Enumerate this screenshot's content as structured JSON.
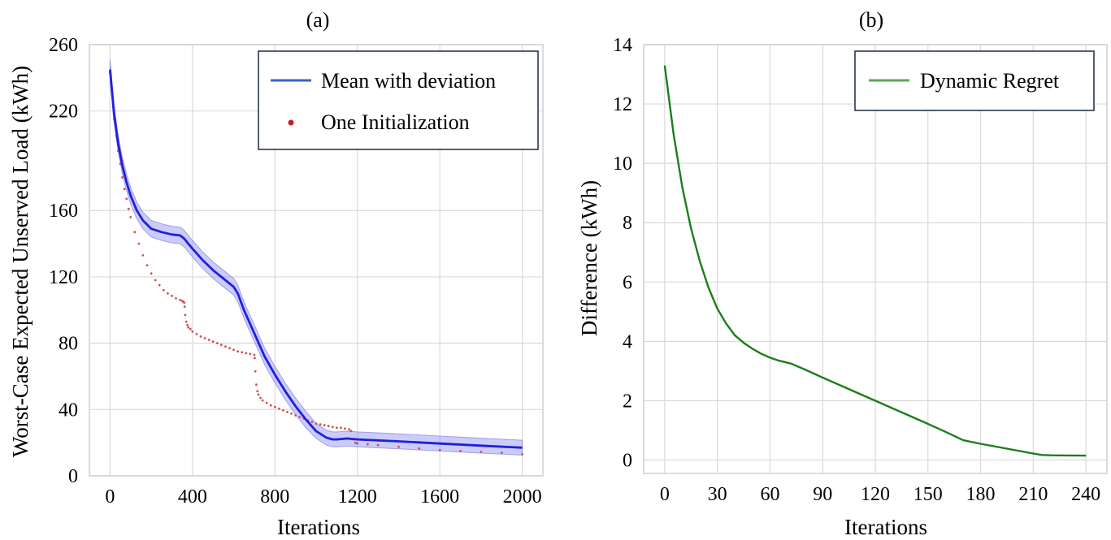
{
  "colors": {
    "mean_line": "#1f1fe0",
    "band_fill": "#8f8ff0",
    "band_edge": "#7070ea",
    "dots": "#d05050",
    "regret": "#1a7f1a",
    "legend_regret": "#5aa85a",
    "legend_mean": "#3a5fcd",
    "legend_dot": "#c81e1e",
    "legend_border": "#1a2a44",
    "grid": "#d9d9d9",
    "frame": "#cfcfcf"
  },
  "chart_data": [
    {
      "type": "line",
      "panel_label": "(a)",
      "xlabel": "Iterations",
      "ylabel": "Worst-Case Expected Unserved Load (kWh)",
      "xlim": [
        -100,
        2100
      ],
      "ylim": [
        0,
        260
      ],
      "xticks": [
        0,
        400,
        800,
        1200,
        1600,
        2000
      ],
      "xtick_labels": [
        "0",
        "400",
        "800",
        "1200",
        "1600",
        "2000"
      ],
      "yticks": [
        0,
        40,
        80,
        120,
        160,
        220,
        260
      ],
      "ytick_labels": [
        "0",
        "40",
        "80",
        "120",
        "160",
        "220",
        "260"
      ],
      "grid": true,
      "legend": {
        "position": "top-right",
        "entries": [
          "Mean with deviation",
          "One Initialization"
        ]
      },
      "series": [
        {
          "name": "Mean with deviation",
          "kind": "line_with_band",
          "x": [
            0,
            20,
            40,
            60,
            80,
            100,
            130,
            160,
            200,
            250,
            300,
            340,
            360,
            380,
            400,
            450,
            500,
            550,
            600,
            620,
            650,
            700,
            750,
            800,
            850,
            900,
            950,
            1000,
            1050,
            1080,
            1100,
            1150,
            1200,
            1400,
            1600,
            1800,
            2000
          ],
          "y": [
            245,
            218,
            200,
            187,
            177,
            169,
            160,
            154,
            149,
            147,
            145.5,
            145,
            143,
            140,
            137,
            130,
            124,
            119,
            114,
            110,
            100,
            86,
            72,
            61,
            51,
            42,
            34,
            27,
            23,
            22,
            22,
            22.5,
            22,
            20.8,
            19.5,
            18.2,
            17
          ],
          "band_halfwidth": [
            6,
            5,
            5,
            5,
            5,
            5,
            5,
            5,
            5,
            5,
            5,
            5,
            5,
            5,
            5,
            5,
            5,
            5,
            5,
            5,
            5,
            5,
            5,
            5,
            5,
            5,
            5,
            4.5,
            4.5,
            4.5,
            4.5,
            4.5,
            4.5,
            4.5,
            4.5,
            4.5,
            4.5
          ]
        },
        {
          "name": "One Initialization",
          "kind": "scatter",
          "x": [
            0,
            10,
            20,
            30,
            40,
            50,
            60,
            70,
            80,
            90,
            100,
            120,
            140,
            160,
            180,
            200,
            220,
            240,
            260,
            280,
            300,
            320,
            340,
            350,
            355,
            360,
            362,
            365,
            370,
            375,
            380,
            390,
            400,
            420,
            440,
            460,
            480,
            500,
            520,
            540,
            560,
            580,
            600,
            620,
            640,
            660,
            680,
            700,
            702,
            705,
            710,
            715,
            720,
            730,
            740,
            760,
            780,
            800,
            820,
            840,
            860,
            880,
            900,
            920,
            940,
            960,
            980,
            1000,
            1020,
            1040,
            1060,
            1080,
            1100,
            1120,
            1140,
            1160,
            1170,
            1180,
            1190,
            1200,
            1250,
            1300,
            1400,
            1500,
            1600,
            1700,
            1800,
            1900,
            2000
          ],
          "y": [
            243,
            230,
            215,
            205,
            196,
            188,
            180,
            173,
            167,
            161,
            156,
            147,
            140,
            133,
            127,
            122,
            118,
            115,
            112,
            110,
            108.5,
            107,
            106,
            105.5,
            105,
            104.5,
            102,
            97,
            93,
            91,
            89.5,
            88.5,
            87,
            85.5,
            84,
            83,
            82,
            81,
            80,
            79,
            78,
            77,
            76,
            75,
            74.5,
            74,
            73.5,
            73,
            71,
            63,
            55,
            51,
            49,
            47,
            45.5,
            44,
            42.5,
            41.5,
            40.5,
            39.5,
            38.5,
            37.5,
            36.5,
            35.5,
            34.5,
            33.5,
            32.5,
            31.5,
            31,
            30.5,
            30,
            29.5,
            29,
            29,
            28.5,
            28,
            27,
            22,
            20,
            19.5,
            19,
            18.5,
            17.5,
            16.5,
            15.5,
            15,
            14.5,
            14,
            13
          ]
        }
      ]
    },
    {
      "type": "line",
      "panel_label": "(b)",
      "xlabel": "Iterations",
      "ylabel": "Difference (kWh)",
      "xlim": [
        -12,
        252
      ],
      "ylim": [
        -0.45,
        14
      ],
      "xticks": [
        0,
        30,
        60,
        90,
        120,
        150,
        180,
        210,
        240
      ],
      "xtick_labels": [
        "0",
        "30",
        "60",
        "90",
        "120",
        "150",
        "180",
        "210",
        "240"
      ],
      "yticks": [
        0,
        2,
        4,
        6,
        8,
        10,
        12,
        14
      ],
      "ytick_labels": [
        "0",
        "2",
        "4",
        "6",
        "8",
        "10",
        "12",
        "14"
      ],
      "grid": true,
      "legend": {
        "position": "top-right",
        "entries": [
          "Dynamic Regret"
        ]
      },
      "series": [
        {
          "name": "Dynamic Regret",
          "x": [
            0,
            5,
            10,
            15,
            20,
            25,
            30,
            35,
            40,
            45,
            50,
            55,
            60,
            65,
            70,
            72,
            80,
            90,
            100,
            110,
            120,
            130,
            140,
            150,
            160,
            170,
            180,
            190,
            200,
            210,
            215,
            220,
            230,
            240
          ],
          "y": [
            13.3,
            11.0,
            9.2,
            7.8,
            6.7,
            5.8,
            5.1,
            4.6,
            4.2,
            3.95,
            3.75,
            3.58,
            3.45,
            3.35,
            3.28,
            3.25,
            3.05,
            2.78,
            2.52,
            2.26,
            2.0,
            1.74,
            1.48,
            1.22,
            0.95,
            0.67,
            0.55,
            0.44,
            0.33,
            0.22,
            0.17,
            0.16,
            0.155,
            0.15
          ]
        }
      ]
    }
  ]
}
